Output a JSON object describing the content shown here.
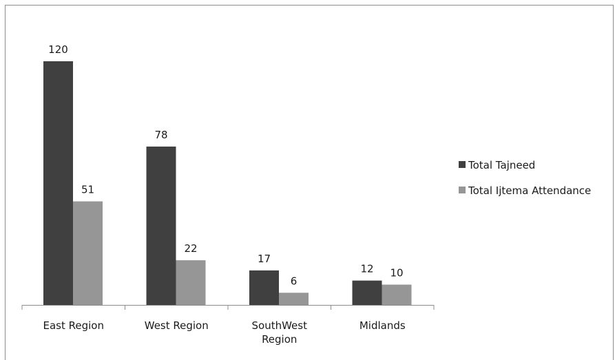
{
  "chart_data": {
    "type": "bar",
    "categories": [
      "East Region",
      "West Region",
      "SouthWest Region",
      "Midlands"
    ],
    "series": [
      {
        "name": "Total Tajneed",
        "values": [
          120,
          78,
          17,
          12
        ],
        "color": "#404040"
      },
      {
        "name": "Total Ijtema Attendance",
        "values": [
          51,
          22,
          6,
          10
        ],
        "color": "#969696"
      }
    ],
    "ylim": [
      0,
      120
    ],
    "grid": false,
    "legend": "right"
  }
}
